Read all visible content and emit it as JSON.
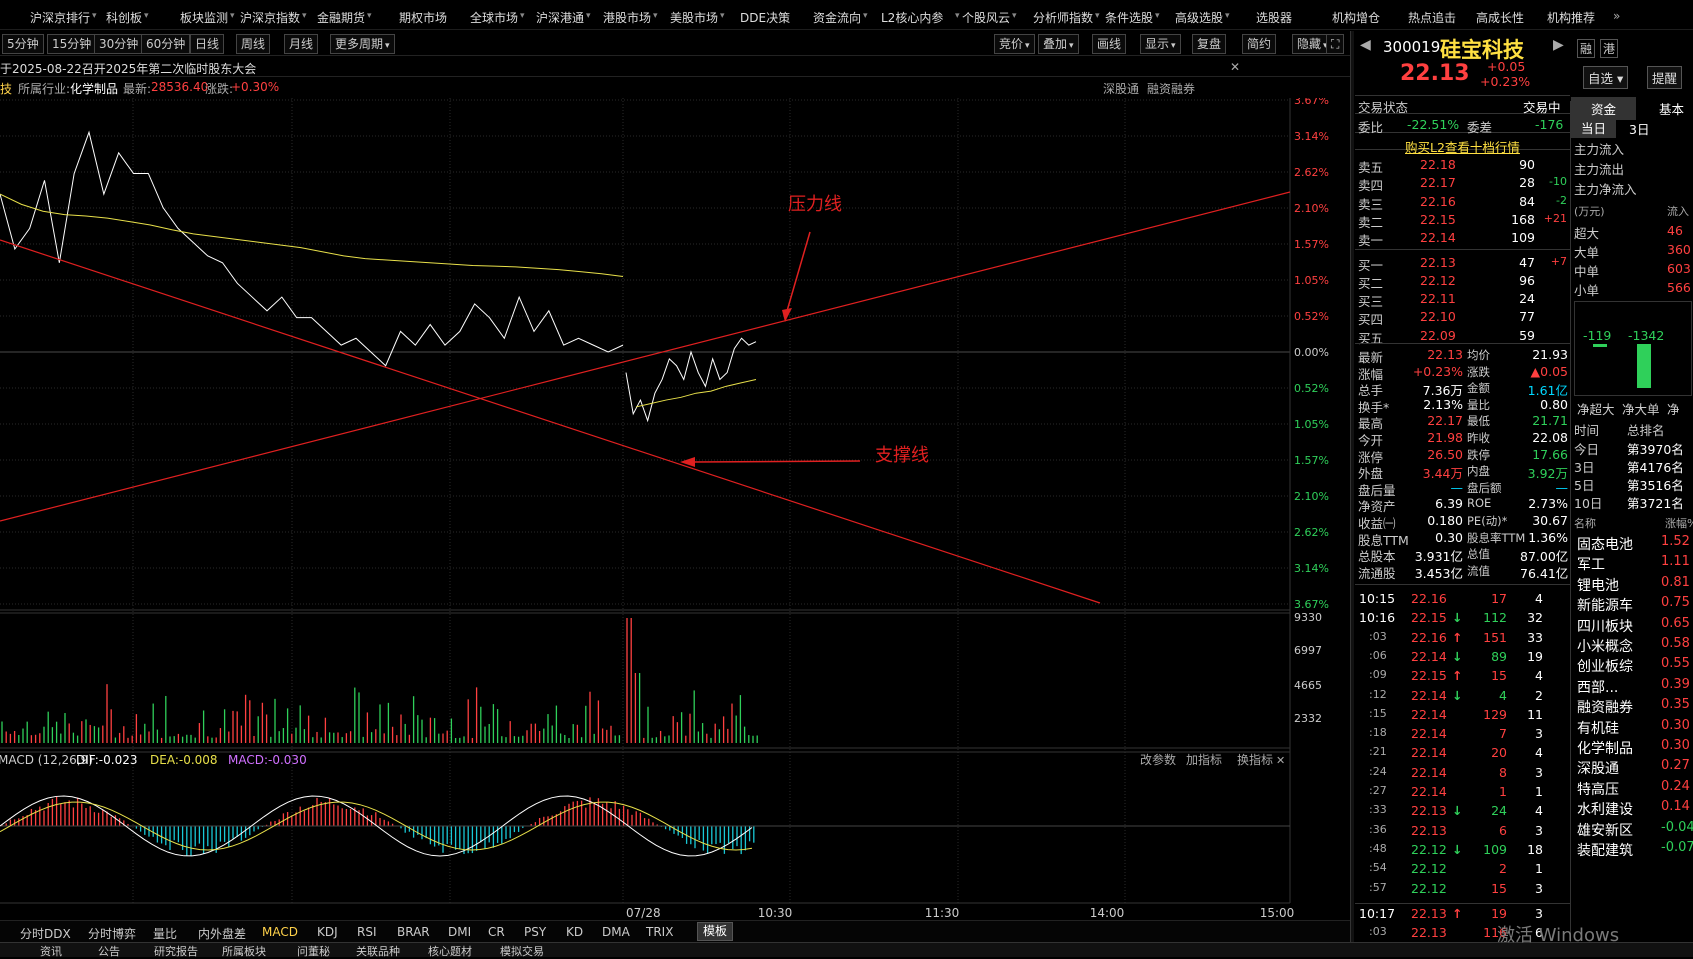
{
  "top_menu": [
    "沪深京排行",
    "科创板",
    "板块监测",
    "沪深京指数",
    "金融期货",
    "期权市场",
    "全球市场",
    "沪深港通",
    "港股市场",
    "美股市场",
    "DDE决策",
    "资金流向",
    "L2核心内参",
    "个股风云",
    "分析师指数",
    "条件选股",
    "高级选股",
    "选股器",
    "机构增仓",
    "热点追击",
    "高成长性",
    "机构推荐"
  ],
  "top_menu_more": "»",
  "period_buttons": [
    "5分钟",
    "15分钟",
    "30分钟",
    "60分钟",
    "日线",
    "周线",
    "月线",
    "更多周期"
  ],
  "period_more": "▾",
  "toolbar_right": [
    "竞价",
    "叠加",
    "画线",
    "显示",
    "复盘",
    "简约",
    "隐藏"
  ],
  "expand_icon": "⛶",
  "notice": {
    "text": "于2025-08-22召开2025年第二次临时股东大会",
    "close": "✕"
  },
  "info_bar": {
    "stock_tail": "技",
    "industry_label": "所属行业:",
    "industry": "化学制品",
    "latest_label": "最新:",
    "latest": "28536.40",
    "change_label": "涨跌:",
    "change": "+0.30%",
    "links": [
      "深股通",
      "融资融券"
    ]
  },
  "chart_data": {
    "type": "line",
    "title": "",
    "price_axis_pct": [
      "3.67%",
      "3.14%",
      "2.62%",
      "2.10%",
      "1.57%",
      "1.05%",
      "0.52%",
      "0.00%",
      "0.52%",
      "1.05%",
      "1.57%",
      "2.10%",
      "2.62%",
      "3.14%",
      "3.67%"
    ],
    "volume_axis": [
      "9330",
      "6997",
      "4665",
      "2332"
    ],
    "time_axis": [
      "07/28",
      "10:30",
      "11:30",
      "14:00",
      "15:00"
    ],
    "annotations": [
      {
        "text": "压力线",
        "type": "resistance-line"
      },
      {
        "text": "支撑线",
        "type": "support-line"
      }
    ],
    "prev_day_price_pct": [
      2.3,
      1.5,
      1.8,
      2.5,
      1.3,
      2.6,
      3.2,
      2.3,
      2.9,
      2.6,
      2.6,
      2.1,
      1.8,
      1.6,
      1.4,
      1.3,
      1.0,
      0.8,
      0.6,
      0.8,
      0.5,
      0.5,
      0.3,
      0.1,
      0.2,
      0.0,
      -0.2,
      0.3,
      0.1,
      0.4,
      0.1,
      0.3,
      0.7,
      0.5,
      0.2,
      0.8,
      0.3,
      0.6,
      0.1,
      0.2,
      0.1,
      0.0,
      0.1
    ],
    "prev_day_avg_pct": [
      2.3,
      2.15,
      2.05,
      2.0,
      1.98,
      1.95,
      1.9,
      1.85,
      1.78,
      1.72,
      1.68,
      1.64,
      1.6,
      1.56,
      1.52,
      1.46,
      1.4,
      1.36,
      1.34,
      1.32,
      1.3,
      1.28,
      1.26,
      1.25,
      1.24,
      1.22,
      1.2,
      1.17,
      1.14,
      1.1
    ],
    "today_price_pct": [
      -0.3,
      -0.9,
      -0.7,
      -1.0,
      -0.6,
      -0.4,
      -0.1,
      -0.2,
      -0.4,
      0.0,
      -0.3,
      -0.5,
      -0.1,
      -0.4,
      -0.3,
      0.05,
      0.2,
      0.1,
      0.15
    ],
    "today_avg_pct": [
      -0.8,
      -0.75,
      -0.7,
      -0.66,
      -0.6,
      -0.57,
      -0.5,
      -0.45,
      -0.4
    ],
    "macd": {
      "label": "MACD (12,26,9)",
      "dif": "DIF:-0.023",
      "dea": "DEA:-0.008",
      "macd": "MACD:-0.030"
    },
    "indicator_controls": [
      "改参数",
      "加指标",
      "换指标"
    ],
    "close_icon": "✕"
  },
  "bottom_tabs": [
    "分时DDX",
    "分时博弈",
    "量比",
    "内外盘差",
    "MACD",
    "KDJ",
    "RSI",
    "BRAR",
    "DMI",
    "CR",
    "PSY",
    "KD",
    "DMA",
    "TRIX",
    "模板"
  ],
  "active_tab": "MACD",
  "footer": [
    "资讯",
    "公告",
    "研究报告",
    "所属板块",
    "问董秘",
    "关联品种",
    "核心题材",
    "模拟交易"
  ],
  "stock_header": {
    "code": "300019",
    "name": "硅宝科技",
    "price": "22.13",
    "change": "+0.05",
    "change_pct": "+0.23%",
    "tags": [
      "融",
      "港"
    ],
    "watch_btn": "自选 ▾",
    "alert_btn": "提醒"
  },
  "trade_status": {
    "label": "交易状态",
    "value": "交易中"
  },
  "commission": {
    "ratio_label": "委比",
    "ratio": "-22.51%",
    "diff_label": "委差",
    "diff": "-176"
  },
  "l2_promo": "购买L2查看十档行情",
  "asks": [
    {
      "label": "卖五",
      "price": "22.18",
      "vol": "90",
      "chg": ""
    },
    {
      "label": "卖四",
      "price": "22.17",
      "vol": "28",
      "chg": "-10"
    },
    {
      "label": "卖三",
      "price": "22.16",
      "vol": "84",
      "chg": "-2"
    },
    {
      "label": "卖二",
      "price": "22.15",
      "vol": "168",
      "chg": "+21"
    },
    {
      "label": "卖一",
      "price": "22.14",
      "vol": "109",
      "chg": ""
    }
  ],
  "bids": [
    {
      "label": "买一",
      "price": "22.13",
      "vol": "47",
      "chg": "+7"
    },
    {
      "label": "买二",
      "price": "22.12",
      "vol": "96",
      "chg": ""
    },
    {
      "label": "买三",
      "price": "22.11",
      "vol": "24",
      "chg": ""
    },
    {
      "label": "买四",
      "price": "22.10",
      "vol": "77",
      "chg": ""
    },
    {
      "label": "买五",
      "price": "22.09",
      "vol": "59",
      "chg": ""
    }
  ],
  "quote_rows": [
    {
      "l1": "最新",
      "v1": "22.13",
      "l2": "均价",
      "v2": "21.93"
    },
    {
      "l1": "涨幅",
      "v1": "+0.23%",
      "l2": "涨跌",
      "v2": "▲0.05"
    },
    {
      "l1": "总手",
      "v1": "7.36万",
      "l2": "金额",
      "v2": "1.61亿"
    },
    {
      "l1": "换手*",
      "v1": "2.13%",
      "l2": "量比",
      "v2": "0.80"
    },
    {
      "l1": "最高",
      "v1": "22.17",
      "l2": "最低",
      "v2": "21.71"
    },
    {
      "l1": "今开",
      "v1": "21.98",
      "l2": "昨收",
      "v2": "22.08"
    },
    {
      "l1": "涨停",
      "v1": "26.50",
      "l2": "跌停",
      "v2": "17.66"
    },
    {
      "l1": "外盘",
      "v1": "3.44万",
      "l2": "内盘",
      "v2": "3.92万"
    },
    {
      "l1": "盘后量",
      "v1": "—",
      "l2": "盘后额",
      "v2": "—"
    },
    {
      "l1": "净资产",
      "v1": "6.39",
      "l2": "ROE",
      "v2": "2.73%"
    },
    {
      "l1": "收益㈠",
      "v1": "0.180",
      "l2": "PE(动)*",
      "v2": "30.67"
    },
    {
      "l1": "股息TTM",
      "v1": "0.30",
      "l2": "股息率TTM",
      "v2": "1.36%"
    },
    {
      "l1": "总股本",
      "v1": "3.931亿",
      "l2": "总值",
      "v2": "87.00亿"
    },
    {
      "l1": "流通股",
      "v1": "3.453亿",
      "l2": "流值",
      "v2": "76.41亿"
    }
  ],
  "ticks": [
    {
      "t": "10:15",
      "p": "22.16",
      "v": "17",
      "n": "4",
      "arrow": ""
    },
    {
      "t": "10:16",
      "p": "22.15",
      "v": "112",
      "n": "32",
      "arrow": "↓"
    },
    {
      "t": ":03",
      "p": "22.16",
      "v": "151",
      "n": "33",
      "arrow": "↑"
    },
    {
      "t": ":06",
      "p": "22.14",
      "v": "89",
      "n": "19",
      "arrow": "↓"
    },
    {
      "t": ":09",
      "p": "22.15",
      "v": "15",
      "n": "4",
      "arrow": "↑"
    },
    {
      "t": ":12",
      "p": "22.14",
      "v": "4",
      "n": "2",
      "arrow": "↓"
    },
    {
      "t": ":15",
      "p": "22.14",
      "v": "129",
      "n": "11",
      "arrow": ""
    },
    {
      "t": ":18",
      "p": "22.14",
      "v": "7",
      "n": "3",
      "arrow": ""
    },
    {
      "t": ":21",
      "p": "22.14",
      "v": "20",
      "n": "4",
      "arrow": ""
    },
    {
      "t": ":24",
      "p": "22.14",
      "v": "8",
      "n": "3",
      "arrow": ""
    },
    {
      "t": ":27",
      "p": "22.14",
      "v": "1",
      "n": "1",
      "arrow": ""
    },
    {
      "t": ":33",
      "p": "22.13",
      "v": "24",
      "n": "4",
      "arrow": "↓"
    },
    {
      "t": ":36",
      "p": "22.13",
      "v": "6",
      "n": "3",
      "arrow": ""
    },
    {
      "t": ":48",
      "p": "22.12",
      "v": "109",
      "n": "18",
      "arrow": "↓"
    },
    {
      "t": ":54",
      "p": "22.12",
      "v": "2",
      "n": "1",
      "arrow": ""
    },
    {
      "t": ":57",
      "p": "22.12",
      "v": "15",
      "n": "3",
      "arrow": ""
    },
    {
      "t": "10:17",
      "p": "22.13",
      "v": "19",
      "n": "3",
      "arrow": "↑"
    },
    {
      "t": ":03",
      "p": "22.13",
      "v": "116",
      "n": "6",
      "arrow": ""
    }
  ],
  "fund_panel": {
    "tabs": [
      "资金",
      "基本"
    ],
    "period_tabs": [
      "当日",
      "3日"
    ],
    "labels": [
      "主力流入",
      "主力流出",
      "主力净流入"
    ],
    "unit": "(万元)",
    "unit_right": "流入",
    "sizes": [
      {
        "label": "超大",
        "val": "46"
      },
      {
        "label": "大单",
        "val": "360"
      },
      {
        "label": "中单",
        "val": "603"
      },
      {
        "label": "小单",
        "val": "566"
      }
    ],
    "bar_values": [
      "-119",
      "-1342"
    ],
    "bar_labels": [
      "净超大",
      "净大单",
      "净"
    ],
    "rank_header": [
      "时间",
      "总排名"
    ],
    "ranks": [
      {
        "p": "今日",
        "r": "第3970名"
      },
      {
        "p": "3日",
        "r": "第4176名"
      },
      {
        "p": "5日",
        "r": "第3516名"
      },
      {
        "p": "10日",
        "r": "第3721名"
      }
    ],
    "sector_header": [
      "名称",
      "涨幅%"
    ],
    "sectors": [
      {
        "n": "固态电池",
        "v": "1.52"
      },
      {
        "n": "军工",
        "v": "1.11"
      },
      {
        "n": "锂电池",
        "v": "0.81"
      },
      {
        "n": "新能源车",
        "v": "0.75"
      },
      {
        "n": "四川板块",
        "v": "0.65"
      },
      {
        "n": "小米概念",
        "v": "0.58"
      },
      {
        "n": "创业板综",
        "v": "0.55"
      },
      {
        "n": "西部...",
        "v": "0.39"
      },
      {
        "n": "融资融券",
        "v": "0.35"
      },
      {
        "n": "有机硅",
        "v": "0.30"
      },
      {
        "n": "化学制品",
        "v": "0.30"
      },
      {
        "n": "深股通",
        "v": "0.27"
      },
      {
        "n": "特高压",
        "v": "0.24"
      },
      {
        "n": "水利建设",
        "v": "0.14"
      },
      {
        "n": "雄安新区",
        "v": "-0.04"
      },
      {
        "n": "装配建筑",
        "v": "-0.07"
      }
    ]
  },
  "watermark": "激活 Windows",
  "colors": {
    "up": "#ff4040",
    "down": "#2fd05a",
    "price_line": "#ffffff",
    "avg_line": "#e8e04a",
    "trend_line": "#e02020",
    "bg": "#000000",
    "grid": "#2a2a2a"
  }
}
